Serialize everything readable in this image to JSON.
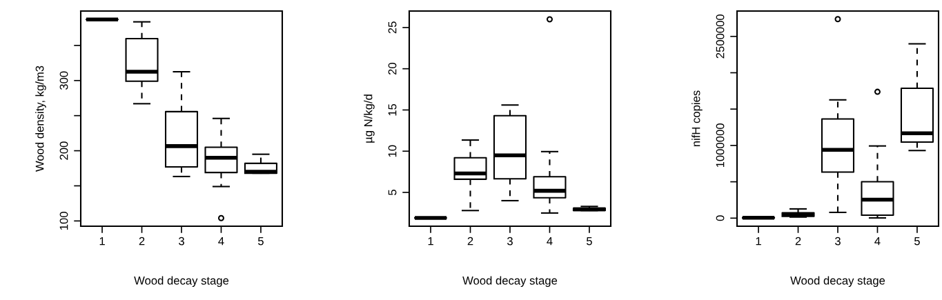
{
  "chart_data": [
    {
      "type": "box",
      "xlabel": "Wood decay stage",
      "ylabel": "Wood density, kg/m3",
      "categories": [
        "1",
        "2",
        "3",
        "4",
        "5"
      ],
      "ylim": [
        92.5,
        399
      ],
      "yticks": [
        100,
        {
          "value": 150,
          "label": null
        },
        200,
        {
          "value": 250,
          "label": null
        },
        300,
        {
          "value": 350,
          "label": null
        }
      ],
      "boxes": [
        {
          "low": 387,
          "q1": 387,
          "median": 387,
          "q3": 387,
          "high": 387
        },
        {
          "low": 267,
          "q1": 299,
          "median": 312.5,
          "q3": 359.7,
          "high": 383.6
        },
        {
          "low": 163.3,
          "q1": 177,
          "median": 206.6,
          "q3": 255.7,
          "high": 312.5
        },
        {
          "low": 149,
          "q1": 169,
          "median": 190,
          "q3": 205,
          "high": 246,
          "outliers": [
            104
          ]
        },
        {
          "low": 168,
          "q1": 168,
          "median": 170,
          "q3": 182,
          "high": 195
        }
      ]
    },
    {
      "type": "box",
      "xlabel": "Wood decay stage",
      "ylabel": "µg N/kg/d",
      "categories": [
        "1",
        "2",
        "3",
        "4",
        "5"
      ],
      "ylim": [
        0.9,
        27.0
      ],
      "yticks": [
        5,
        10,
        15,
        20,
        25
      ],
      "boxes": [
        {
          "low": 1.9,
          "q1": 1.9,
          "median": 1.9,
          "q3": 1.9,
          "high": 1.9
        },
        {
          "low": 2.8,
          "q1": 6.6,
          "median": 7.3,
          "q3": 9.2,
          "high": 11.35
        },
        {
          "low": 4.0,
          "q1": 6.65,
          "median": 9.5,
          "q3": 14.3,
          "high": 15.6
        },
        {
          "low": 2.5,
          "q1": 4.35,
          "median": 5.2,
          "q3": 6.9,
          "high": 9.95,
          "outliers": [
            26.0
          ]
        },
        {
          "low": 2.8,
          "q1": 2.8,
          "median": 2.95,
          "q3": 3.1,
          "high": 3.3
        }
      ]
    },
    {
      "type": "box",
      "xlabel": "Wood decay stage",
      "ylabel": "nifH copies",
      "categories": [
        "1",
        "2",
        "3",
        "4",
        "5"
      ],
      "ylim": [
        -111000,
        2849000
      ],
      "yticks": [
        0,
        {
          "value": 500000,
          "label": null
        },
        1000000,
        {
          "value": 1500000,
          "label": null
        },
        {
          "value": 2000000,
          "label": null
        },
        2500000
      ],
      "boxes": [
        {
          "low": 0,
          "q1": 0,
          "median": 5000,
          "q3": 10000,
          "high": 15000
        },
        {
          "low": 15000,
          "q1": 25000,
          "median": 50000,
          "q3": 73000,
          "high": 127000
        },
        {
          "low": 79000,
          "q1": 634000,
          "median": 939000,
          "q3": 1364000,
          "high": 1627000,
          "outliers": [
            2738000
          ]
        },
        {
          "low": 3000,
          "q1": 41000,
          "median": 254000,
          "q3": 501000,
          "high": 993000,
          "outliers": [
            1738000
          ]
        },
        {
          "low": 930000,
          "q1": 1047000,
          "median": 1168000,
          "q3": 1786000,
          "high": 2398000
        }
      ]
    }
  ]
}
